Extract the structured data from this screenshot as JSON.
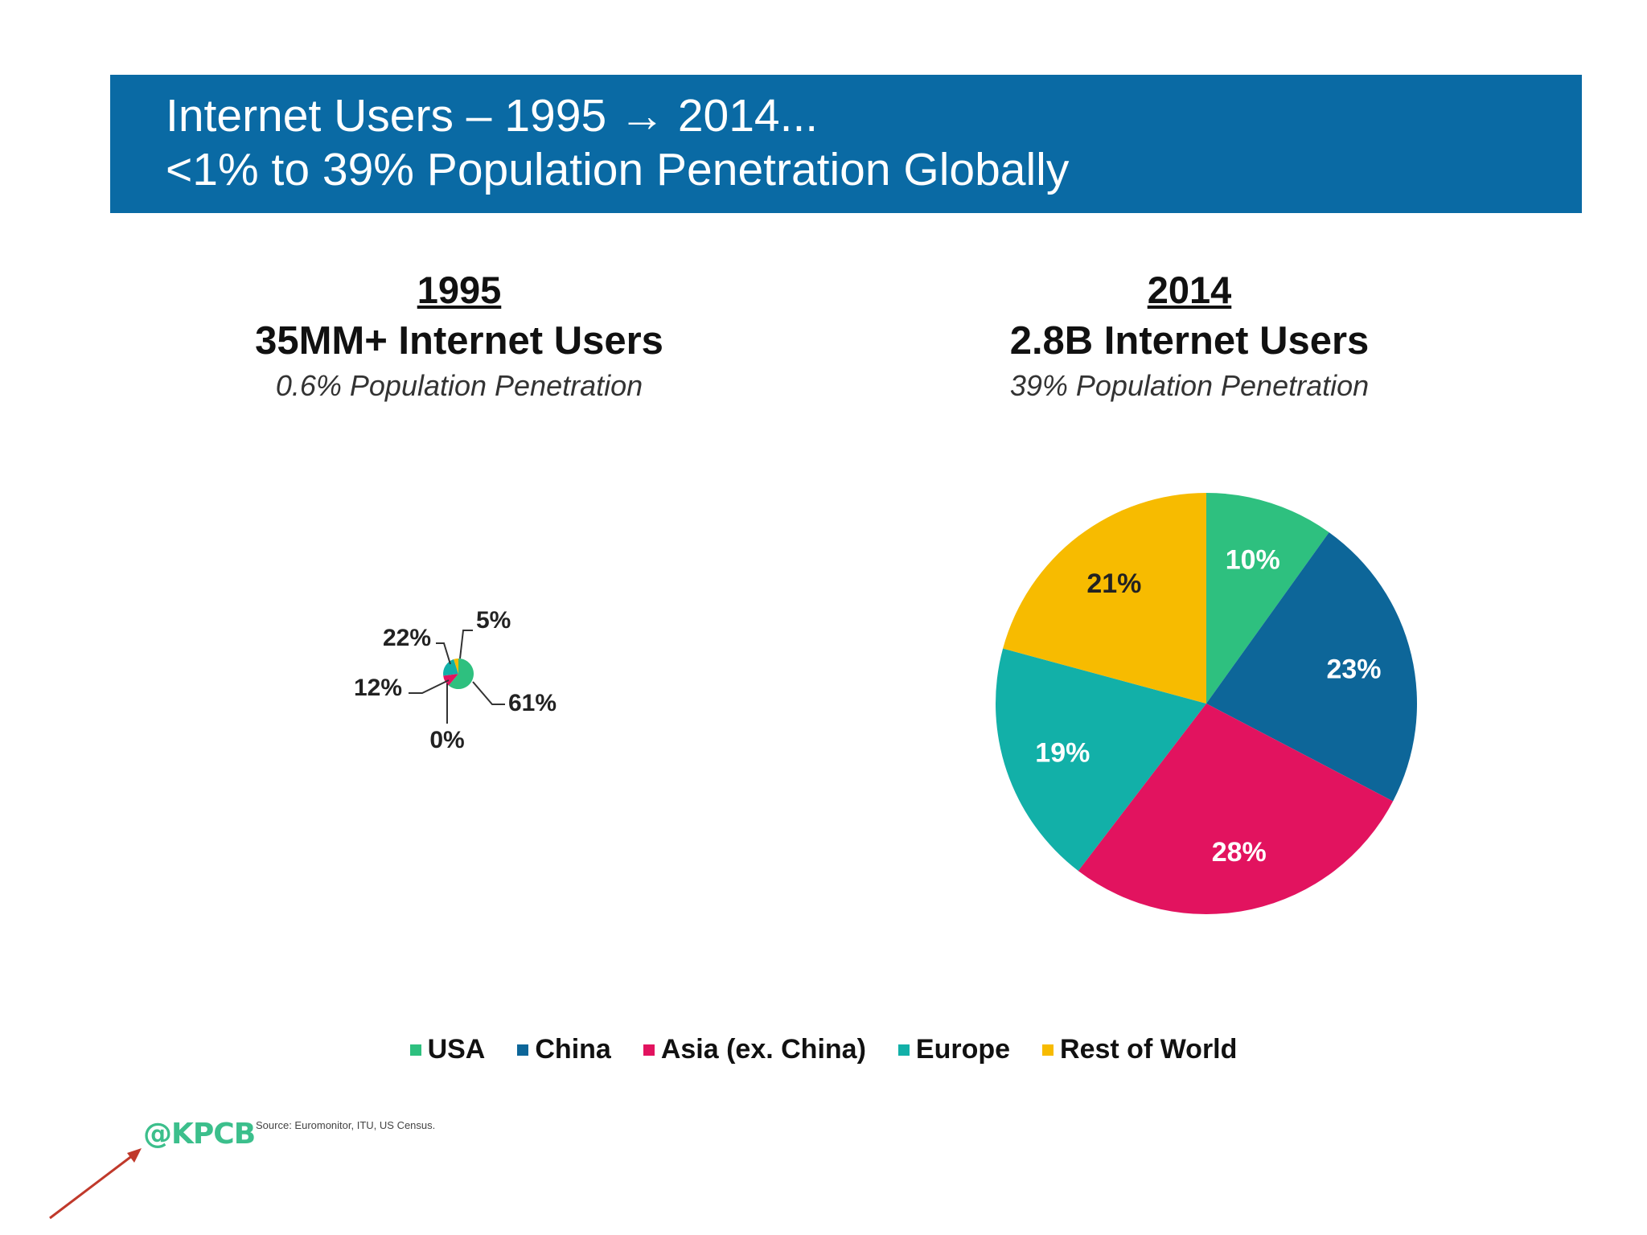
{
  "header": {
    "line1": "Internet Users – 1995 → 2014...",
    "line2": "<1% to 39% Population Penetration Globally",
    "bg_color": "#0a6aa4"
  },
  "panels": [
    {
      "year": "1995",
      "users": "35MM+ Internet Users",
      "penetration": "0.6% Population Penetration"
    },
    {
      "year": "2014",
      "users": "2.8B Internet Users",
      "penetration": "39% Population Penetration"
    }
  ],
  "legend": [
    {
      "label": "USA",
      "color": "#2ec07f"
    },
    {
      "label": "China",
      "color": "#0d6699"
    },
    {
      "label": "Asia (ex. China)",
      "color": "#e2135f"
    },
    {
      "label": "Europe",
      "color": "#12b0a8"
    },
    {
      "label": "Rest of World",
      "color": "#f7bb00"
    }
  ],
  "chart_data": [
    {
      "type": "pie",
      "title": "1995",
      "categories": [
        "USA",
        "China",
        "Asia (ex. China)",
        "Europe",
        "Rest of World"
      ],
      "values": [
        61,
        0,
        12,
        22,
        5
      ],
      "labels": [
        "61%",
        "0%",
        "12%",
        "22%",
        "5%"
      ]
    },
    {
      "type": "pie",
      "title": "2014",
      "categories": [
        "USA",
        "China",
        "Asia (ex. China)",
        "Europe",
        "Rest of World"
      ],
      "values": [
        10,
        23,
        28,
        19,
        21
      ],
      "labels": [
        "10%",
        "23%",
        "28%",
        "19%",
        "21%"
      ]
    }
  ],
  "footer": {
    "logo": "@KPCB",
    "source": "Source: Euromonitor, ITU, US Census."
  }
}
